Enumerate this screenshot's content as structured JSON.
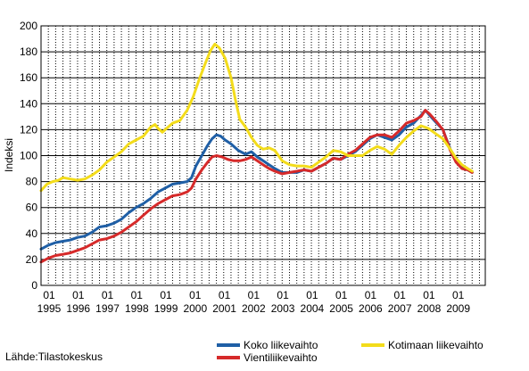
{
  "chart_data": {
    "type": "line",
    "ylabel": "Indeksi",
    "xlabel": "",
    "ylim": [
      0,
      200
    ],
    "yticks": [
      0,
      20,
      40,
      60,
      80,
      100,
      120,
      140,
      160,
      180,
      200
    ],
    "xlim": [
      1995.0,
      2010.2
    ],
    "x_tick_month": "01",
    "x_tick_years": [
      "1995",
      "1996",
      "1997",
      "1998",
      "1999",
      "2000",
      "2001",
      "2002",
      "2003",
      "2004",
      "2005",
      "2006",
      "2007",
      "2008",
      "2009"
    ],
    "grid": true,
    "legend_position": "bottom",
    "series": [
      {
        "name": "Koko liikevaihto",
        "color": "#1f5fa6",
        "points": [
          [
            1995.0,
            28
          ],
          [
            1995.25,
            31
          ],
          [
            1995.5,
            33
          ],
          [
            1995.75,
            34
          ],
          [
            1996.0,
            35
          ],
          [
            1996.25,
            37
          ],
          [
            1996.5,
            38
          ],
          [
            1996.75,
            41
          ],
          [
            1997.0,
            45
          ],
          [
            1997.25,
            46
          ],
          [
            1997.5,
            48
          ],
          [
            1997.75,
            51
          ],
          [
            1998.0,
            56
          ],
          [
            1998.25,
            60
          ],
          [
            1998.5,
            63
          ],
          [
            1998.75,
            67
          ],
          [
            1999.0,
            72
          ],
          [
            1999.25,
            75
          ],
          [
            1999.5,
            78
          ],
          [
            1999.75,
            79
          ],
          [
            2000.0,
            80
          ],
          [
            2000.15,
            83
          ],
          [
            2000.3,
            92
          ],
          [
            2000.5,
            100
          ],
          [
            2000.7,
            108
          ],
          [
            2000.85,
            113
          ],
          [
            2001.0,
            116
          ],
          [
            2001.15,
            115
          ],
          [
            2001.3,
            112
          ],
          [
            2001.5,
            109
          ],
          [
            2001.75,
            104
          ],
          [
            2002.0,
            101
          ],
          [
            2002.2,
            103
          ],
          [
            2002.4,
            99
          ],
          [
            2002.6,
            96
          ],
          [
            2002.8,
            93
          ],
          [
            2003.0,
            90
          ],
          [
            2003.25,
            87
          ],
          [
            2003.5,
            87
          ],
          [
            2003.75,
            87
          ],
          [
            2004.0,
            89
          ],
          [
            2004.25,
            88
          ],
          [
            2004.5,
            91
          ],
          [
            2004.75,
            94
          ],
          [
            2005.0,
            98
          ],
          [
            2005.25,
            97
          ],
          [
            2005.5,
            100
          ],
          [
            2005.75,
            103
          ],
          [
            2006.0,
            108
          ],
          [
            2006.25,
            113
          ],
          [
            2006.5,
            116
          ],
          [
            2006.75,
            114
          ],
          [
            2007.0,
            112
          ],
          [
            2007.25,
            116
          ],
          [
            2007.5,
            122
          ],
          [
            2007.75,
            125
          ],
          [
            2008.0,
            131
          ],
          [
            2008.15,
            135
          ],
          [
            2008.3,
            131
          ],
          [
            2008.5,
            126
          ],
          [
            2008.75,
            120
          ],
          [
            2009.0,
            105
          ],
          [
            2009.2,
            95
          ],
          [
            2009.4,
            91
          ],
          [
            2009.6,
            89
          ],
          [
            2009.75,
            87
          ]
        ]
      },
      {
        "name": "Vientiliikevaihto",
        "color": "#d62a2a",
        "points": [
          [
            1995.0,
            18
          ],
          [
            1995.25,
            21
          ],
          [
            1995.5,
            23
          ],
          [
            1995.75,
            24
          ],
          [
            1996.0,
            25
          ],
          [
            1996.25,
            27
          ],
          [
            1996.5,
            29
          ],
          [
            1996.75,
            32
          ],
          [
            1997.0,
            35
          ],
          [
            1997.25,
            36
          ],
          [
            1997.5,
            38
          ],
          [
            1997.75,
            41
          ],
          [
            1998.0,
            45
          ],
          [
            1998.25,
            49
          ],
          [
            1998.5,
            54
          ],
          [
            1998.75,
            59
          ],
          [
            1999.0,
            63
          ],
          [
            1999.25,
            66
          ],
          [
            1999.5,
            69
          ],
          [
            1999.75,
            70
          ],
          [
            2000.0,
            72
          ],
          [
            2000.15,
            75
          ],
          [
            2000.3,
            82
          ],
          [
            2000.5,
            89
          ],
          [
            2000.7,
            95
          ],
          [
            2000.85,
            99
          ],
          [
            2001.0,
            100
          ],
          [
            2001.2,
            99
          ],
          [
            2001.4,
            97
          ],
          [
            2001.6,
            96
          ],
          [
            2001.8,
            96
          ],
          [
            2002.0,
            97
          ],
          [
            2002.2,
            99
          ],
          [
            2002.4,
            96
          ],
          [
            2002.6,
            93
          ],
          [
            2002.8,
            90
          ],
          [
            2003.0,
            88
          ],
          [
            2003.25,
            86
          ],
          [
            2003.5,
            87
          ],
          [
            2003.75,
            88
          ],
          [
            2004.0,
            89
          ],
          [
            2004.25,
            88
          ],
          [
            2004.5,
            91
          ],
          [
            2004.75,
            94
          ],
          [
            2005.0,
            98
          ],
          [
            2005.25,
            97
          ],
          [
            2005.5,
            101
          ],
          [
            2005.75,
            104
          ],
          [
            2006.0,
            109
          ],
          [
            2006.25,
            114
          ],
          [
            2006.5,
            116
          ],
          [
            2006.75,
            116
          ],
          [
            2007.0,
            114
          ],
          [
            2007.25,
            119
          ],
          [
            2007.5,
            125
          ],
          [
            2007.75,
            127
          ],
          [
            2008.0,
            130
          ],
          [
            2008.15,
            135
          ],
          [
            2008.3,
            132
          ],
          [
            2008.5,
            127
          ],
          [
            2008.75,
            120
          ],
          [
            2009.0,
            104
          ],
          [
            2009.2,
            95
          ],
          [
            2009.4,
            90
          ],
          [
            2009.6,
            89
          ],
          [
            2009.75,
            87
          ]
        ]
      },
      {
        "name": "Kotimaan liikevaihto",
        "color": "#f3dc1b",
        "points": [
          [
            1995.0,
            73
          ],
          [
            1995.2,
            78
          ],
          [
            1995.4,
            80
          ],
          [
            1995.6,
            81
          ],
          [
            1995.75,
            83
          ],
          [
            1996.0,
            82
          ],
          [
            1996.25,
            81
          ],
          [
            1996.5,
            82
          ],
          [
            1996.75,
            85
          ],
          [
            1997.0,
            89
          ],
          [
            1997.25,
            95
          ],
          [
            1997.5,
            99
          ],
          [
            1997.75,
            103
          ],
          [
            1998.0,
            109
          ],
          [
            1998.25,
            112
          ],
          [
            1998.5,
            115
          ],
          [
            1998.75,
            122
          ],
          [
            1998.9,
            124
          ],
          [
            1999.0,
            121
          ],
          [
            1999.15,
            118
          ],
          [
            1999.3,
            121
          ],
          [
            1999.5,
            125
          ],
          [
            1999.75,
            127
          ],
          [
            2000.0,
            135
          ],
          [
            2000.2,
            145
          ],
          [
            2000.4,
            158
          ],
          [
            2000.6,
            170
          ],
          [
            2000.8,
            181
          ],
          [
            2000.95,
            186
          ],
          [
            2001.1,
            183
          ],
          [
            2001.3,
            175
          ],
          [
            2001.5,
            160
          ],
          [
            2001.65,
            143
          ],
          [
            2001.8,
            128
          ],
          [
            2002.0,
            122
          ],
          [
            2002.2,
            114
          ],
          [
            2002.4,
            108
          ],
          [
            2002.6,
            105
          ],
          [
            2002.8,
            106
          ],
          [
            2003.0,
            104
          ],
          [
            2003.25,
            96
          ],
          [
            2003.5,
            93
          ],
          [
            2003.75,
            92
          ],
          [
            2004.0,
            92
          ],
          [
            2004.25,
            91
          ],
          [
            2004.5,
            95
          ],
          [
            2004.75,
            99
          ],
          [
            2005.0,
            104
          ],
          [
            2005.25,
            103
          ],
          [
            2005.5,
            100
          ],
          [
            2005.75,
            100
          ],
          [
            2006.0,
            100
          ],
          [
            2006.25,
            104
          ],
          [
            2006.5,
            107
          ],
          [
            2006.75,
            105
          ],
          [
            2007.0,
            101
          ],
          [
            2007.25,
            108
          ],
          [
            2007.5,
            114
          ],
          [
            2007.75,
            119
          ],
          [
            2008.0,
            123
          ],
          [
            2008.25,
            121
          ],
          [
            2008.5,
            117
          ],
          [
            2008.75,
            113
          ],
          [
            2009.0,
            105
          ],
          [
            2009.2,
            98
          ],
          [
            2009.4,
            93
          ],
          [
            2009.6,
            90
          ],
          [
            2009.75,
            88
          ]
        ]
      }
    ]
  },
  "legend": {
    "koko": "Koko liikevaihto",
    "vienti": "Vientiliikevaihto",
    "kotimaa": "Kotimaan liikevaihto"
  },
  "source_text": "Lähde:Tilastokeskus"
}
